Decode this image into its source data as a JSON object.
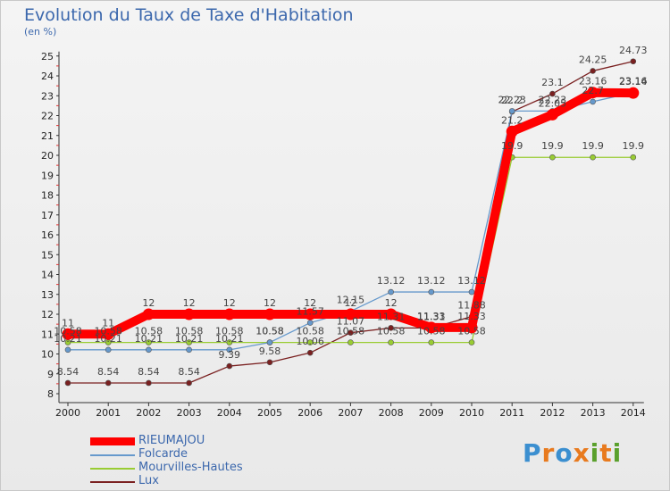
{
  "header": {
    "title": "Evolution du Taux de Taxe d'Habitation",
    "unit": "(en %)"
  },
  "logo": {
    "text": "Proxiti"
  },
  "chart_data": {
    "type": "line",
    "title": "Evolution du Taux de Taxe d'Habitation",
    "ylabel": "(en %)",
    "xlabel": "",
    "ylim": [
      8,
      25
    ],
    "yticks": [
      8,
      9,
      10,
      11,
      12,
      13,
      14,
      15,
      16,
      17,
      18,
      19,
      20,
      21,
      22,
      23,
      24,
      25
    ],
    "x": [
      "2000",
      "2001",
      "2002",
      "2003",
      "2004",
      "2005",
      "2006",
      "2007",
      "2008",
      "2009",
      "2010",
      "2011",
      "2012",
      "2013",
      "2014"
    ],
    "grid": false,
    "legend": "bottom-left",
    "series": [
      {
        "name": "RIEUMAJOU",
        "color": "#ff0000",
        "labels": [
          "11",
          "11",
          "12",
          "12",
          "12",
          "12",
          "12",
          "12",
          "12",
          "11.33",
          "11.33",
          "21.2",
          "22.05",
          "23.16",
          "23.14"
        ],
        "values": [
          11,
          11,
          12,
          12,
          12,
          12,
          12,
          12,
          12,
          11.33,
          11.33,
          21.2,
          22.05,
          23.16,
          23.14
        ]
      },
      {
        "name": "Folcarde",
        "color": "#6699cc",
        "labels": [
          "10.21",
          "10.21",
          "10.21",
          "10.21",
          "10.21",
          "10.58",
          "11.57",
          "12.15",
          "13.12",
          "13.12",
          "13.12",
          "22.23",
          "22.23",
          "22.7",
          "23.16"
        ],
        "values": [
          10.21,
          10.21,
          10.21,
          10.21,
          10.21,
          10.58,
          11.57,
          12.15,
          13.12,
          13.12,
          13.12,
          22.23,
          22.23,
          22.7,
          23.16
        ]
      },
      {
        "name": "Mourvilles-Hautes",
        "color": "#99cc33",
        "labels": [
          "10.58",
          "10.58",
          "10.58",
          "10.58",
          "10.58",
          "10.58",
          "10.58",
          "10.58",
          "10.58",
          "10.58",
          "10.58",
          "19.9",
          "19.9",
          "19.9",
          "19.9"
        ],
        "values": [
          10.58,
          10.58,
          10.58,
          10.58,
          10.58,
          10.58,
          10.58,
          10.58,
          10.58,
          10.58,
          10.58,
          19.9,
          19.9,
          19.9,
          19.9
        ]
      },
      {
        "name": "Lux",
        "color": "#7a2020",
        "labels": [
          "8.54",
          "8.54",
          "8.54",
          "8.54",
          "9.39",
          "9.58",
          "10.06",
          "11.07",
          "11.31",
          "11.31",
          "11.88",
          "22.2",
          "23.1",
          "24.25",
          "24.73"
        ],
        "values": [
          8.54,
          8.54,
          8.54,
          8.54,
          9.39,
          9.58,
          10.06,
          11.07,
          11.31,
          11.31,
          11.88,
          22.2,
          23.1,
          24.25,
          24.73
        ]
      }
    ]
  }
}
